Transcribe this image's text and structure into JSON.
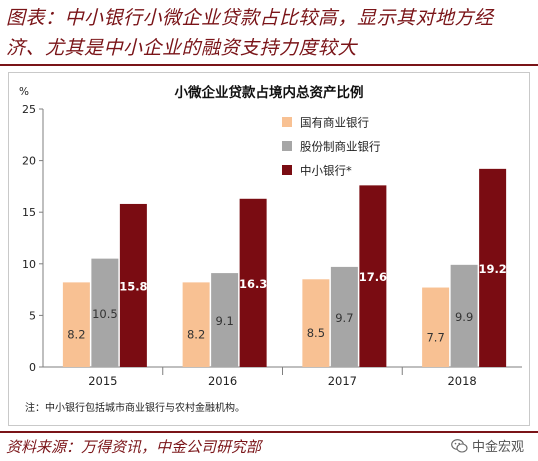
{
  "header": {
    "line1": "图表：中小银行小微企业贷款占比较高，显示其对地方经",
    "line2": "济、尤其是中小企业的融资支持力度较大"
  },
  "footer": {
    "source": "资料来源：万得资讯，中金公司研究部",
    "watermark": "中金宏观",
    "watermark_icon": "wechat-icon"
  },
  "chart_data": {
    "type": "bar",
    "title": "小微企业贷款占境内总资产比例",
    "ylabel": "%",
    "xlabel": "",
    "ylim": [
      0,
      25
    ],
    "yticks": [
      0,
      5,
      10,
      15,
      20,
      25
    ],
    "categories": [
      "2015",
      "2016",
      "2017",
      "2018"
    ],
    "series": [
      {
        "name": "国有商业银行",
        "color": "#f8c193",
        "label_color": "#333333",
        "values": [
          8.2,
          8.2,
          8.5,
          7.7
        ]
      },
      {
        "name": "股份制商业银行",
        "color": "#a6a6a6",
        "label_color": "#333333",
        "values": [
          10.5,
          9.1,
          9.7,
          9.9
        ]
      },
      {
        "name": "中小银行*",
        "color": "#7a0c12",
        "label_color": "#ffffff",
        "values": [
          15.8,
          16.3,
          17.6,
          19.2
        ]
      }
    ],
    "legend_position": "top-left",
    "grid": false,
    "note": "注：中小银行包括城市商业银行与农村金融机构。"
  }
}
